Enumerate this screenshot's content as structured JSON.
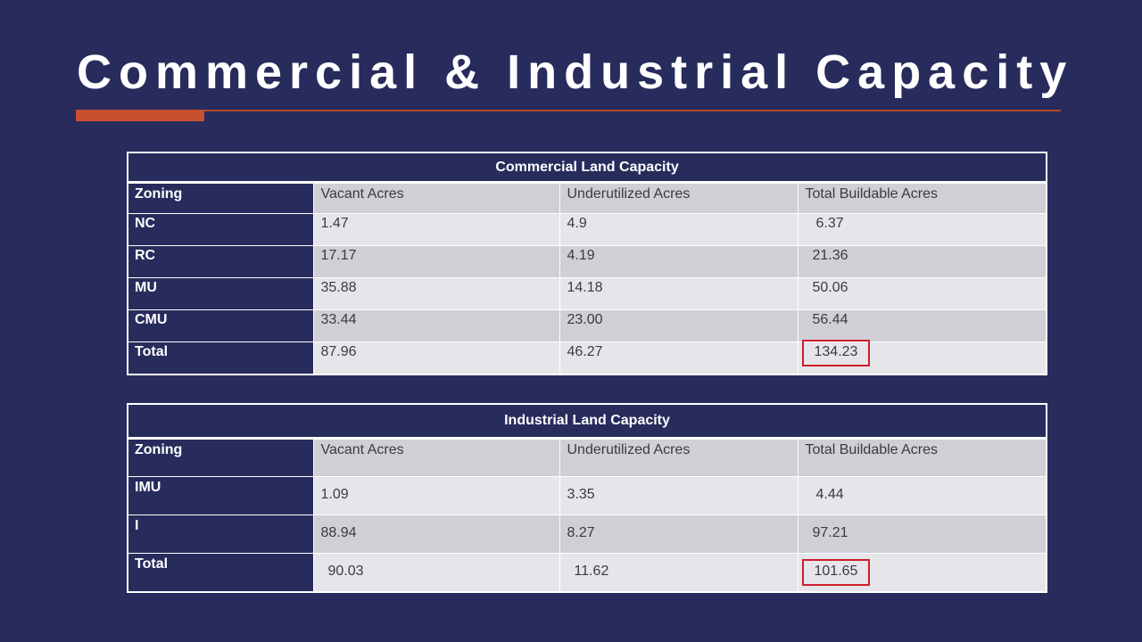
{
  "title": "Commercial & Industrial Capacity",
  "colors": {
    "background": "#272c5c",
    "accent": "#c8502e",
    "highlight": "#cc1f2a"
  },
  "commercial": {
    "caption": "Commercial Land Capacity",
    "headers": [
      "Zoning",
      "Vacant Acres",
      "Underutilized Acres",
      "Total Buildable Acres"
    ],
    "rows": [
      [
        "NC",
        "1.47",
        "4.9",
        "6.37"
      ],
      [
        "RC",
        "17.17",
        "4.19",
        "21.36"
      ],
      [
        "MU",
        "35.88",
        "14.18",
        "50.06"
      ],
      [
        "CMU",
        "33.44",
        "23.00",
        "56.44"
      ],
      [
        "Total",
        "87.96",
        "46.27",
        "134.23"
      ]
    ]
  },
  "industrial": {
    "caption": "Industrial Land Capacity",
    "headers": [
      "Zoning",
      "Vacant Acres",
      "Underutilized Acres",
      "Total Buildable Acres"
    ],
    "rows": [
      [
        "IMU",
        "1.09",
        "3.35",
        "4.44"
      ],
      [
        "I",
        "88.94",
        "8.27",
        "97.21"
      ],
      [
        "Total",
        "90.03",
        "11.62",
        "101.65"
      ]
    ]
  }
}
